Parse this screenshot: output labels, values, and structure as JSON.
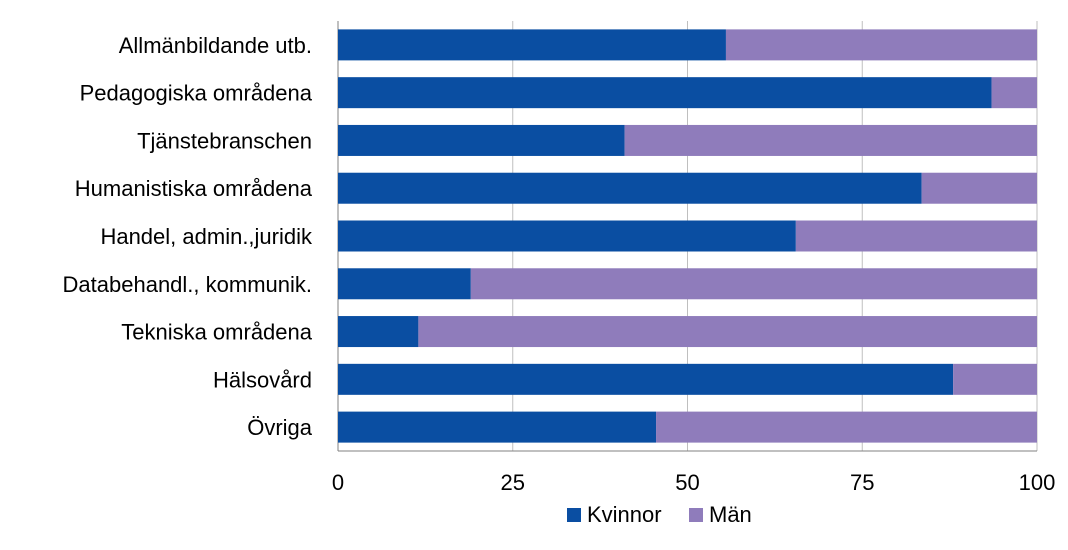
{
  "chart_data": {
    "type": "bar",
    "orientation": "horizontal",
    "stacked": true,
    "categories": [
      "Allmänbildande utb.",
      "Pedagogiska områdena",
      "Tjänstebranschen",
      "Humanistiska områdena",
      "Handel, admin.,juridik",
      "Databehandl., kommunik.",
      "Tekniska områdena",
      "Hälsovård",
      "Övriga"
    ],
    "series": [
      {
        "name": "Kvinnor",
        "color": "#0a4ea2",
        "values": [
          55.5,
          93.5,
          41,
          83.5,
          65.5,
          19,
          11.5,
          88,
          45.5
        ]
      },
      {
        "name": "Män",
        "color": "#8f7cbb",
        "values": [
          44.5,
          6.5,
          59,
          16.5,
          34.5,
          81,
          88.5,
          12,
          54.5
        ]
      }
    ],
    "xlim": [
      0,
      100
    ],
    "xticks": [
      "0",
      "25",
      "50",
      "75",
      "100"
    ],
    "xtick_values": [
      0,
      25,
      50,
      75,
      100
    ],
    "grid": true,
    "legend_position": "bottom"
  }
}
